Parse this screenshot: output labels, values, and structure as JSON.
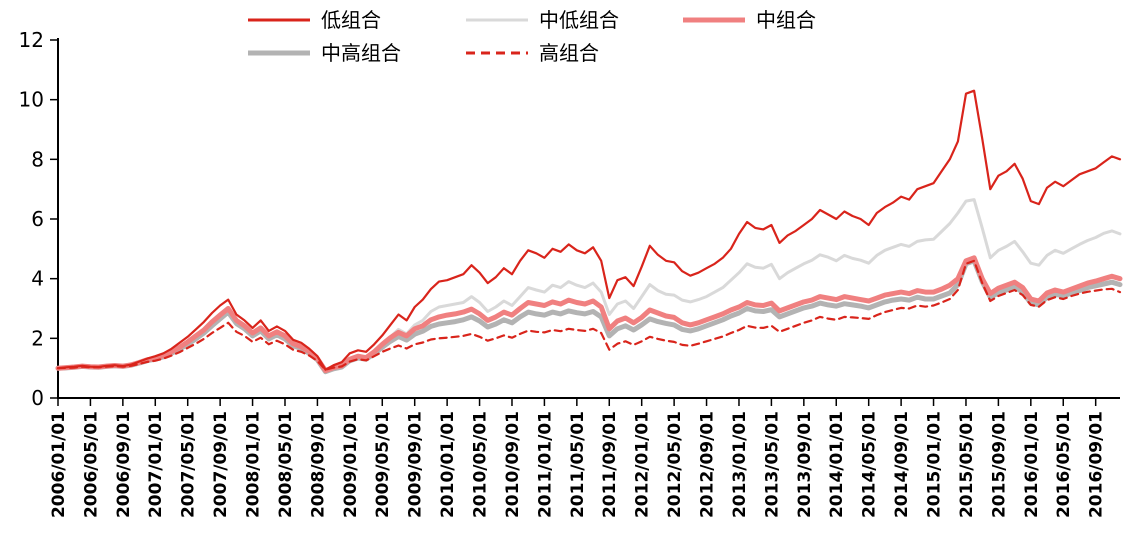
{
  "chart_data": {
    "type": "line",
    "title": "",
    "xlabel": "",
    "ylabel": "",
    "ylim": [
      0,
      12
    ],
    "yticks": [
      0,
      2,
      4,
      6,
      8,
      10,
      12
    ],
    "grid": false,
    "legend_position": "top",
    "x_monthly_range": [
      "2006/01",
      "2016/12"
    ],
    "x_label_every": 4,
    "x_tick_labels": [
      "2006/01/01",
      "2006/05/01",
      "2006/09/01",
      "2007/01/01",
      "2007/05/01",
      "2007/09/01",
      "2008/01/01",
      "2008/05/01",
      "2008/09/01",
      "2009/01/01",
      "2009/05/01",
      "2009/09/01",
      "2010/01/01",
      "2010/05/01",
      "2010/09/01",
      "2011/01/01",
      "2011/05/01",
      "2011/09/01",
      "2012/01/01",
      "2012/05/01",
      "2012/09/01",
      "2013/01/01",
      "2013/05/01",
      "2013/09/01",
      "2014/01/01",
      "2014/05/01",
      "2014/09/01",
      "2015/01/01",
      "2015/05/01",
      "2015/09/01",
      "2016/01/01",
      "2016/05/01",
      "2016/09/01"
    ],
    "legend_rows": [
      [
        0,
        1,
        2
      ],
      [
        3,
        4
      ]
    ],
    "legend_cols": [
      246,
      464,
      681
    ],
    "draw_order": [
      1,
      3,
      2,
      4,
      0
    ],
    "series": [
      {
        "key": "low",
        "name": "低组合",
        "color": "#d9241b",
        "width": 2.2,
        "dash": null,
        "values": [
          1.0,
          1.03,
          1.05,
          1.08,
          1.05,
          1.04,
          1.08,
          1.1,
          1.07,
          1.12,
          1.22,
          1.32,
          1.4,
          1.5,
          1.65,
          1.85,
          2.05,
          2.3,
          2.55,
          2.85,
          3.1,
          3.3,
          2.8,
          2.6,
          2.35,
          2.6,
          2.25,
          2.4,
          2.25,
          1.95,
          1.85,
          1.65,
          1.4,
          0.95,
          1.1,
          1.2,
          1.5,
          1.6,
          1.55,
          1.8,
          2.1,
          2.45,
          2.8,
          2.6,
          3.05,
          3.3,
          3.65,
          3.9,
          3.95,
          4.05,
          4.15,
          4.45,
          4.2,
          3.85,
          4.05,
          4.35,
          4.15,
          4.6,
          4.95,
          4.85,
          4.7,
          5.0,
          4.9,
          5.15,
          4.95,
          4.85,
          5.05,
          4.6,
          3.35,
          3.95,
          4.05,
          3.75,
          4.4,
          5.1,
          4.8,
          4.6,
          4.55,
          4.25,
          4.1,
          4.2,
          4.35,
          4.5,
          4.7,
          5.0,
          5.5,
          5.9,
          5.7,
          5.65,
          5.8,
          5.2,
          5.45,
          5.6,
          5.8,
          6.0,
          6.3,
          6.15,
          6.0,
          6.25,
          6.1,
          6.0,
          5.8,
          6.2,
          6.4,
          6.55,
          6.75,
          6.65,
          7.0,
          7.1,
          7.2,
          7.6,
          8.0,
          8.6,
          10.2,
          10.3,
          8.7,
          7.0,
          7.45,
          7.6,
          7.85,
          7.35,
          6.6,
          6.5,
          7.05,
          7.25,
          7.1,
          7.3,
          7.5,
          7.6,
          7.7,
          7.9,
          8.1,
          8.0
        ]
      },
      {
        "key": "mid-low",
        "name": "中低组合",
        "color": "#d9d9d9",
        "width": 3,
        "dash": null,
        "values": [
          1.0,
          1.02,
          1.04,
          1.06,
          1.04,
          1.03,
          1.06,
          1.08,
          1.06,
          1.1,
          1.18,
          1.26,
          1.32,
          1.4,
          1.52,
          1.68,
          1.85,
          2.05,
          2.25,
          2.5,
          2.7,
          2.85,
          2.45,
          2.3,
          2.1,
          2.3,
          2.0,
          2.15,
          2.0,
          1.75,
          1.65,
          1.5,
          1.28,
          0.85,
          0.98,
          1.05,
          1.3,
          1.4,
          1.35,
          1.55,
          1.8,
          2.05,
          2.3,
          2.15,
          2.45,
          2.6,
          2.9,
          3.05,
          3.1,
          3.15,
          3.2,
          3.4,
          3.2,
          2.9,
          3.05,
          3.25,
          3.1,
          3.4,
          3.7,
          3.62,
          3.55,
          3.78,
          3.7,
          3.9,
          3.78,
          3.7,
          3.85,
          3.55,
          2.8,
          3.15,
          3.25,
          3.0,
          3.4,
          3.8,
          3.6,
          3.48,
          3.45,
          3.28,
          3.22,
          3.3,
          3.4,
          3.55,
          3.7,
          3.95,
          4.2,
          4.5,
          4.38,
          4.35,
          4.48,
          4.0,
          4.2,
          4.35,
          4.5,
          4.62,
          4.8,
          4.72,
          4.6,
          4.78,
          4.68,
          4.62,
          4.52,
          4.78,
          4.95,
          5.05,
          5.15,
          5.08,
          5.25,
          5.3,
          5.32,
          5.58,
          5.85,
          6.2,
          6.6,
          6.65,
          5.7,
          4.7,
          4.95,
          5.08,
          5.25,
          4.9,
          4.52,
          4.45,
          4.78,
          4.95,
          4.85,
          5.0,
          5.15,
          5.28,
          5.38,
          5.52,
          5.6,
          5.5
        ]
      },
      {
        "key": "mid",
        "name": "中组合",
        "color": "#f08080",
        "width": 5,
        "dash": null,
        "values": [
          1.0,
          1.02,
          1.04,
          1.07,
          1.05,
          1.04,
          1.07,
          1.09,
          1.07,
          1.11,
          1.19,
          1.28,
          1.33,
          1.42,
          1.55,
          1.7,
          1.88,
          2.08,
          2.28,
          2.55,
          2.78,
          3.0,
          2.6,
          2.42,
          2.18,
          2.35,
          2.08,
          2.22,
          2.08,
          1.82,
          1.72,
          1.56,
          1.32,
          0.92,
          1.02,
          1.08,
          1.3,
          1.4,
          1.35,
          1.55,
          1.8,
          2.02,
          2.2,
          2.08,
          2.32,
          2.42,
          2.62,
          2.72,
          2.78,
          2.82,
          2.88,
          2.98,
          2.82,
          2.6,
          2.72,
          2.88,
          2.78,
          3.0,
          3.2,
          3.15,
          3.1,
          3.22,
          3.15,
          3.28,
          3.2,
          3.15,
          3.25,
          3.05,
          2.32,
          2.58,
          2.68,
          2.52,
          2.7,
          2.95,
          2.85,
          2.75,
          2.7,
          2.52,
          2.45,
          2.52,
          2.62,
          2.72,
          2.82,
          2.95,
          3.05,
          3.2,
          3.12,
          3.1,
          3.18,
          2.92,
          3.02,
          3.12,
          3.22,
          3.28,
          3.4,
          3.35,
          3.3,
          3.4,
          3.35,
          3.3,
          3.25,
          3.35,
          3.45,
          3.5,
          3.55,
          3.5,
          3.6,
          3.55,
          3.55,
          3.65,
          3.78,
          4.0,
          4.6,
          4.7,
          4.0,
          3.5,
          3.68,
          3.78,
          3.88,
          3.7,
          3.32,
          3.25,
          3.52,
          3.62,
          3.55,
          3.65,
          3.75,
          3.85,
          3.92,
          4.0,
          4.08,
          4.0
        ]
      },
      {
        "key": "mid-high",
        "name": "中高组合",
        "color": "#b3b3b3",
        "width": 5,
        "dash": null,
        "values": [
          1.0,
          1.01,
          1.03,
          1.06,
          1.04,
          1.03,
          1.06,
          1.08,
          1.06,
          1.1,
          1.17,
          1.25,
          1.3,
          1.38,
          1.5,
          1.64,
          1.8,
          1.98,
          2.18,
          2.42,
          2.65,
          2.88,
          2.5,
          2.32,
          2.08,
          2.25,
          1.98,
          2.12,
          1.98,
          1.75,
          1.66,
          1.5,
          1.28,
          0.88,
          0.98,
          1.04,
          1.25,
          1.34,
          1.3,
          1.48,
          1.7,
          1.9,
          2.06,
          1.94,
          2.14,
          2.24,
          2.4,
          2.48,
          2.52,
          2.56,
          2.62,
          2.72,
          2.58,
          2.38,
          2.48,
          2.62,
          2.52,
          2.72,
          2.88,
          2.82,
          2.78,
          2.88,
          2.82,
          2.92,
          2.86,
          2.82,
          2.9,
          2.72,
          2.08,
          2.32,
          2.42,
          2.28,
          2.45,
          2.65,
          2.56,
          2.5,
          2.45,
          2.3,
          2.25,
          2.32,
          2.42,
          2.52,
          2.62,
          2.75,
          2.85,
          3.0,
          2.92,
          2.9,
          2.96,
          2.72,
          2.82,
          2.92,
          3.02,
          3.08,
          3.18,
          3.12,
          3.08,
          3.16,
          3.12,
          3.08,
          3.02,
          3.12,
          3.22,
          3.28,
          3.32,
          3.28,
          3.38,
          3.32,
          3.32,
          3.42,
          3.52,
          3.8,
          4.5,
          4.6,
          3.9,
          3.38,
          3.52,
          3.62,
          3.72,
          3.55,
          3.18,
          3.12,
          3.38,
          3.48,
          3.42,
          3.52,
          3.6,
          3.7,
          3.76,
          3.82,
          3.88,
          3.8
        ]
      },
      {
        "key": "high",
        "name": "高组合",
        "color": "#d9241b",
        "width": 2.2,
        "dash": "7 5",
        "values": [
          1.0,
          1.01,
          1.02,
          1.05,
          1.03,
          1.03,
          1.05,
          1.07,
          1.05,
          1.08,
          1.14,
          1.21,
          1.25,
          1.32,
          1.42,
          1.54,
          1.68,
          1.82,
          1.98,
          2.18,
          2.35,
          2.52,
          2.22,
          2.08,
          1.88,
          2.02,
          1.8,
          1.92,
          1.8,
          1.62,
          1.55,
          1.42,
          1.24,
          0.95,
          1.02,
          1.06,
          1.22,
          1.3,
          1.26,
          1.4,
          1.55,
          1.66,
          1.76,
          1.66,
          1.8,
          1.86,
          1.96,
          2.0,
          2.02,
          2.05,
          2.08,
          2.15,
          2.05,
          1.92,
          2.0,
          2.1,
          2.02,
          2.15,
          2.26,
          2.22,
          2.2,
          2.28,
          2.24,
          2.32,
          2.28,
          2.25,
          2.32,
          2.18,
          1.62,
          1.82,
          1.9,
          1.78,
          1.9,
          2.05,
          1.98,
          1.92,
          1.88,
          1.78,
          1.75,
          1.82,
          1.9,
          1.98,
          2.06,
          2.18,
          2.28,
          2.42,
          2.36,
          2.35,
          2.42,
          2.22,
          2.32,
          2.42,
          2.52,
          2.6,
          2.72,
          2.66,
          2.62,
          2.72,
          2.7,
          2.68,
          2.65,
          2.78,
          2.88,
          2.95,
          3.02,
          3.0,
          3.1,
          3.06,
          3.1,
          3.2,
          3.32,
          3.62,
          4.5,
          4.6,
          3.85,
          3.25,
          3.42,
          3.52,
          3.62,
          3.45,
          3.12,
          3.06,
          3.28,
          3.38,
          3.32,
          3.42,
          3.5,
          3.56,
          3.6,
          3.64,
          3.66,
          3.55
        ]
      }
    ]
  }
}
